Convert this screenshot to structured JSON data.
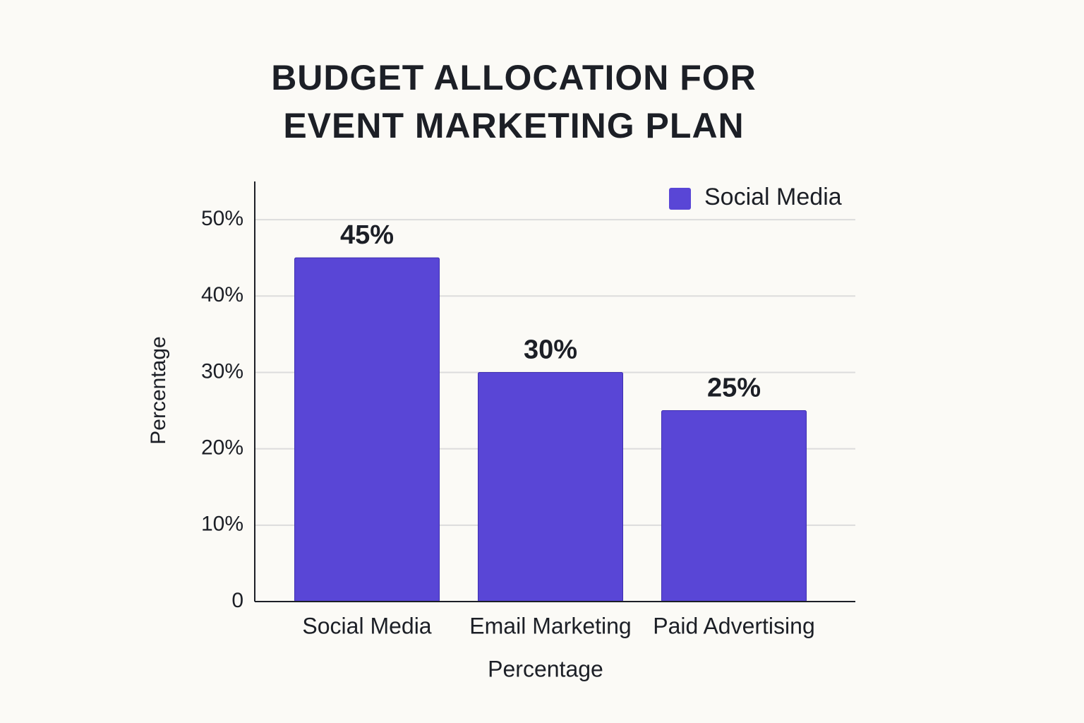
{
  "chart_data": {
    "type": "bar",
    "title": "BUDGET ALLOCATION FOR EVENT MARKETING PLAN",
    "x_label": "Percentage",
    "y_label": "Percentage",
    "categories": [
      "Social Media",
      "Email Marketing",
      "Paid Advertising"
    ],
    "series": [
      {
        "name": "Social Media",
        "color": "#5946d6",
        "values": [
          45,
          30,
          25
        ],
        "value_labels": [
          "45%",
          "30%",
          "25%"
        ]
      }
    ],
    "ylim": [
      0,
      55
    ],
    "yticks": [
      0,
      {
        "value": 10,
        "label": "10%"
      },
      {
        "value": 20,
        "label": "20%"
      },
      {
        "value": 30,
        "label": "30%"
      },
      {
        "value": 40,
        "label": "40%"
      },
      {
        "value": 50,
        "label": "50%"
      }
    ],
    "grid": true,
    "legend": "upper right"
  }
}
